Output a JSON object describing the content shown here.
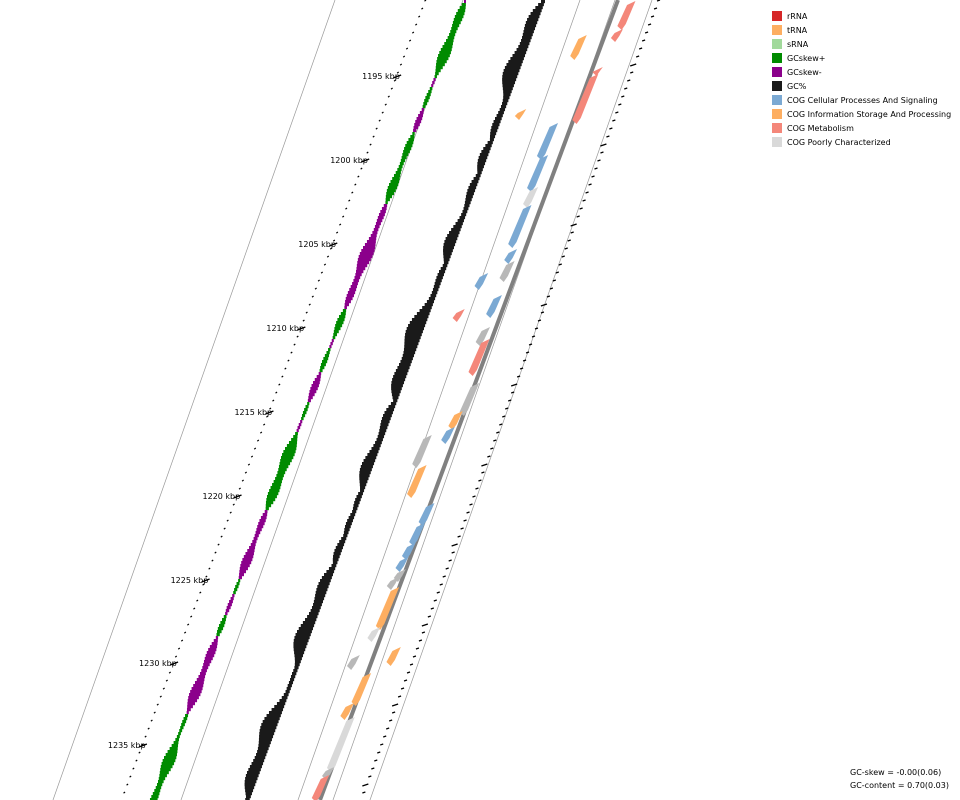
{
  "legend": [
    {
      "label": "rRNA",
      "color": "#d62728"
    },
    {
      "label": "tRNA",
      "color": "#fdae61"
    },
    {
      "label": "sRNA",
      "color": "#a1d99b"
    },
    {
      "label": "GCskew+",
      "color": "#008b00"
    },
    {
      "label": "GCskew-",
      "color": "#8b008b"
    },
    {
      "label": "GC%",
      "color": "#1a1a1a"
    },
    {
      "label": "COG Cellular Processes And Signaling",
      "color": "#7ba9d3"
    },
    {
      "label": "COG Information Storage And Processing",
      "color": "#fdae61"
    },
    {
      "label": "COG Metabolism",
      "color": "#f4877a"
    },
    {
      "label": "COG Poorly Characterized",
      "color": "#d9d9d9"
    }
  ],
  "tick_labels": [
    "1195 kbp",
    "1200 kbp",
    "1205 kbp",
    "1210 kbp",
    "1215 kbp",
    "1220 kbp",
    "1225 kbp",
    "1230 kbp",
    "1235 kbp"
  ],
  "stats": {
    "gc_skew": "GC-skew = -0.00(0.06)",
    "gc_content": "GC-content = 0.70(0.03)"
  },
  "colors": {
    "backbone": "#808080",
    "ring_line": "#999999",
    "poorly_dark": "#b8b8b8"
  }
}
